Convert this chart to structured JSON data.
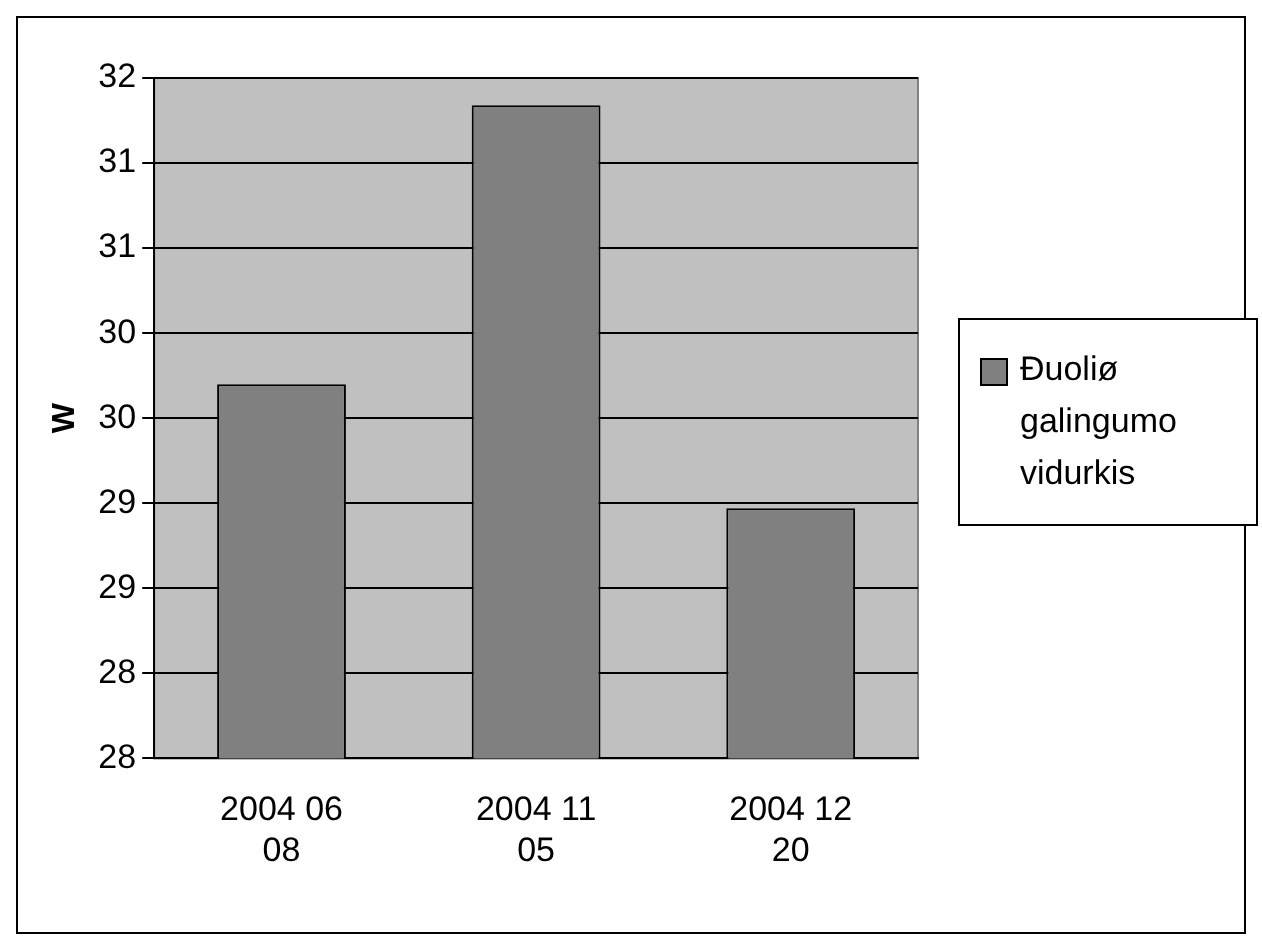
{
  "chart_data": {
    "type": "bar",
    "ylabel": "W",
    "categories": [
      "2004 06 08",
      "2004 11 05",
      "2004 12 20"
    ],
    "series": [
      {
        "name": "Ðuoliø galingumo vidurkis",
        "color": "#808080",
        "values": [
          30.2,
          31.84,
          29.47
        ]
      }
    ],
    "ylim": [
      28,
      32
    ],
    "yticks": [
      28,
      {
        "value": 28.5,
        "label": "28"
      },
      29,
      {
        "value": 29.5,
        "label": "29"
      },
      30,
      {
        "value": 30.5,
        "label": "30"
      },
      31,
      {
        "value": 31.5,
        "label": "31"
      },
      32
    ],
    "grid": "y",
    "legend": "right"
  }
}
